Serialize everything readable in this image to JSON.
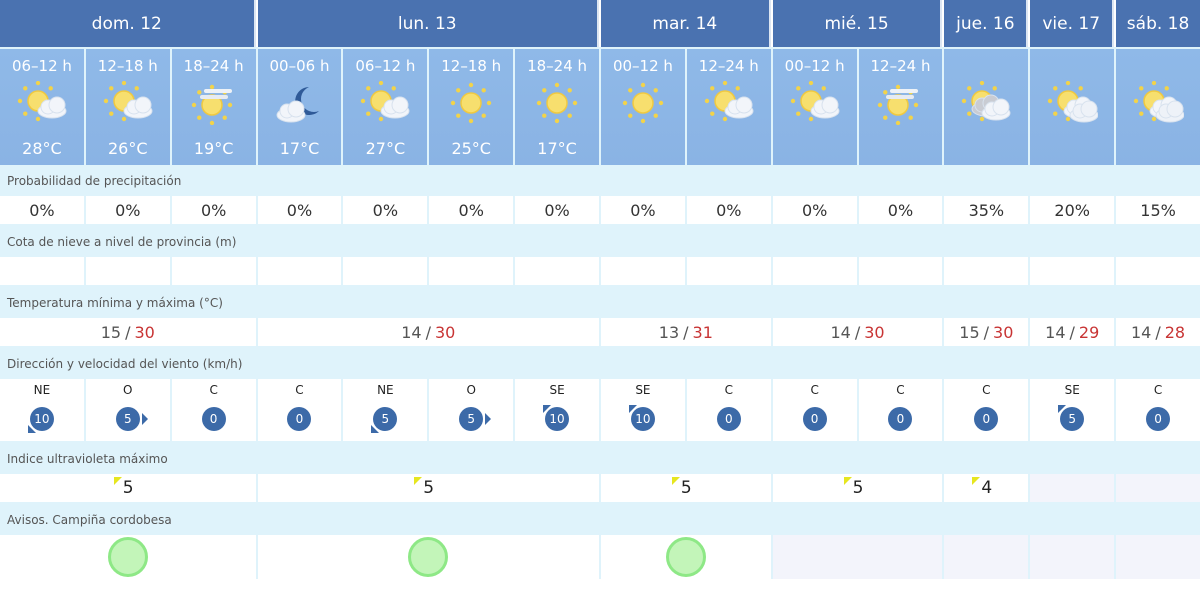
{
  "days": [
    {
      "label": "dom. 12",
      "span": 3,
      "tmin": "15",
      "tmax": "30",
      "uv": "5",
      "aviso": "green"
    },
    {
      "label": "lun. 13",
      "span": 4,
      "tmin": "14",
      "tmax": "30",
      "uv": "5",
      "aviso": "green"
    },
    {
      "label": "mar. 14",
      "span": 2,
      "tmin": "13",
      "tmax": "31",
      "uv": "5",
      "aviso": "green"
    },
    {
      "label": "mié. 15",
      "span": 2,
      "tmin": "14",
      "tmax": "30",
      "uv": "5",
      "aviso": ""
    },
    {
      "label": "jue. 16",
      "span": 1,
      "tmin": "15",
      "tmax": "30",
      "uv": "4",
      "aviso": ""
    },
    {
      "label": "vie. 17",
      "span": 1,
      "tmin": "14",
      "tmax": "29",
      "uv": "",
      "aviso": ""
    },
    {
      "label": "sáb. 18",
      "span": 1,
      "tmin": "14",
      "tmax": "28",
      "uv": "",
      "aviso": ""
    }
  ],
  "periods": [
    {
      "time": "06–12 h",
      "icon": "sun-cloud",
      "temp": "28°C",
      "precip": "0%",
      "wind_dir": "NE",
      "wind_speed": "10"
    },
    {
      "time": "12–18 h",
      "icon": "sun-cloud",
      "temp": "26°C",
      "precip": "0%",
      "wind_dir": "O",
      "wind_speed": "5"
    },
    {
      "time": "18–24 h",
      "icon": "sun-haze",
      "temp": "19°C",
      "precip": "0%",
      "wind_dir": "C",
      "wind_speed": "0"
    },
    {
      "time": "00–06 h",
      "icon": "moon-cloud",
      "temp": "17°C",
      "precip": "0%",
      "wind_dir": "C",
      "wind_speed": "0"
    },
    {
      "time": "06–12 h",
      "icon": "sun-cloud",
      "temp": "27°C",
      "precip": "0%",
      "wind_dir": "NE",
      "wind_speed": "5"
    },
    {
      "time": "12–18 h",
      "icon": "sun",
      "temp": "25°C",
      "precip": "0%",
      "wind_dir": "O",
      "wind_speed": "5"
    },
    {
      "time": "18–24 h",
      "icon": "sun",
      "temp": "17°C",
      "precip": "0%",
      "wind_dir": "SE",
      "wind_speed": "10"
    },
    {
      "time": "00–12 h",
      "icon": "sun",
      "temp": "",
      "precip": "0%",
      "wind_dir": "SE",
      "wind_speed": "10"
    },
    {
      "time": "12–24 h",
      "icon": "sun-cloud",
      "temp": "",
      "precip": "0%",
      "wind_dir": "C",
      "wind_speed": "0"
    },
    {
      "time": "00–12 h",
      "icon": "sun-cloud",
      "temp": "",
      "precip": "0%",
      "wind_dir": "C",
      "wind_speed": "0"
    },
    {
      "time": "12–24 h",
      "icon": "sun-haze",
      "temp": "",
      "precip": "0%",
      "wind_dir": "C",
      "wind_speed": "0"
    },
    {
      "time": "",
      "icon": "sun-cloud-grey",
      "temp": "",
      "precip": "35%",
      "wind_dir": "C",
      "wind_speed": "0"
    },
    {
      "time": "",
      "icon": "sun-clouds",
      "temp": "",
      "precip": "20%",
      "wind_dir": "SE",
      "wind_speed": "5"
    },
    {
      "time": "",
      "icon": "sun-clouds",
      "temp": "",
      "precip": "15%",
      "wind_dir": "C",
      "wind_speed": "0"
    }
  ],
  "labels": {
    "precip": "Probabilidad de precipitación",
    "snow": "Cota de nieve a nivel de provincia (m)",
    "temp": "Temperatura mínima y máxima (°C)",
    "wind": "Dirección y velocidad del viento (km/h)",
    "uv": "Indice ultravioleta máximo",
    "avisos": "Avisos. Campiña cordobesa"
  },
  "colors": {
    "header": "#4a72b0",
    "subheader": "#8fb9e8",
    "label_row": "#dff3fb",
    "max_temp": "#c83434",
    "wind_badge": "#3c6aa8",
    "uv_marker": "#e6e620",
    "aviso_green": "#c3f5b9"
  }
}
